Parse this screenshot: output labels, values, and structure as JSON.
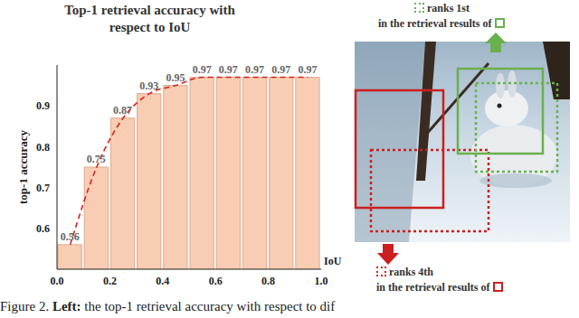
{
  "chart_data": {
    "type": "bar",
    "title": "Top-1 retrieval accuracy with respect to IoU",
    "x_label": "IoU",
    "y_label": "top-1 accuracy",
    "bins": [
      0,
      0.1,
      0.2,
      0.3,
      0.4,
      0.5,
      0.6,
      0.7,
      0.8,
      0.9,
      1.0
    ],
    "series": [
      {
        "type": "bar",
        "color": "#f9cdb3",
        "values": [
          0.56,
          0.75,
          0.87,
          0.93,
          0.95,
          0.97,
          0.97,
          0.97,
          0.97,
          0.97
        ]
      },
      {
        "type": "line",
        "color": "#d6201a",
        "line_style": "dashed",
        "values": [
          0.56,
          0.75,
          0.87,
          0.93,
          0.95,
          0.97,
          0.97,
          0.97,
          0.97,
          0.97
        ]
      }
    ],
    "xlim": [
      0,
      1
    ],
    "xticks": [
      {
        "value": 0,
        "label": "0.0"
      },
      0.2,
      0.4,
      0.6,
      0.8,
      {
        "value": 1,
        "label": "1.0"
      }
    ],
    "ylim": [
      0.5,
      1.0
    ],
    "yticks": [
      0.6,
      0.7,
      0.8,
      0.9
    ],
    "data_labels": true,
    "grid": false
  },
  "right_panel": {
    "top": {
      "line1": "ranks 1st",
      "line2": "in the retrieval results of",
      "color": "#6ab04c"
    },
    "bottom": {
      "line1": "ranks 4th",
      "line2": "in the retrieval results of",
      "color": "#cc1f1f"
    }
  },
  "caption": {
    "label": "Figure 2.",
    "bold": "Left:",
    "text": "the top-1 retrieval accuracy with respect to dif"
  }
}
